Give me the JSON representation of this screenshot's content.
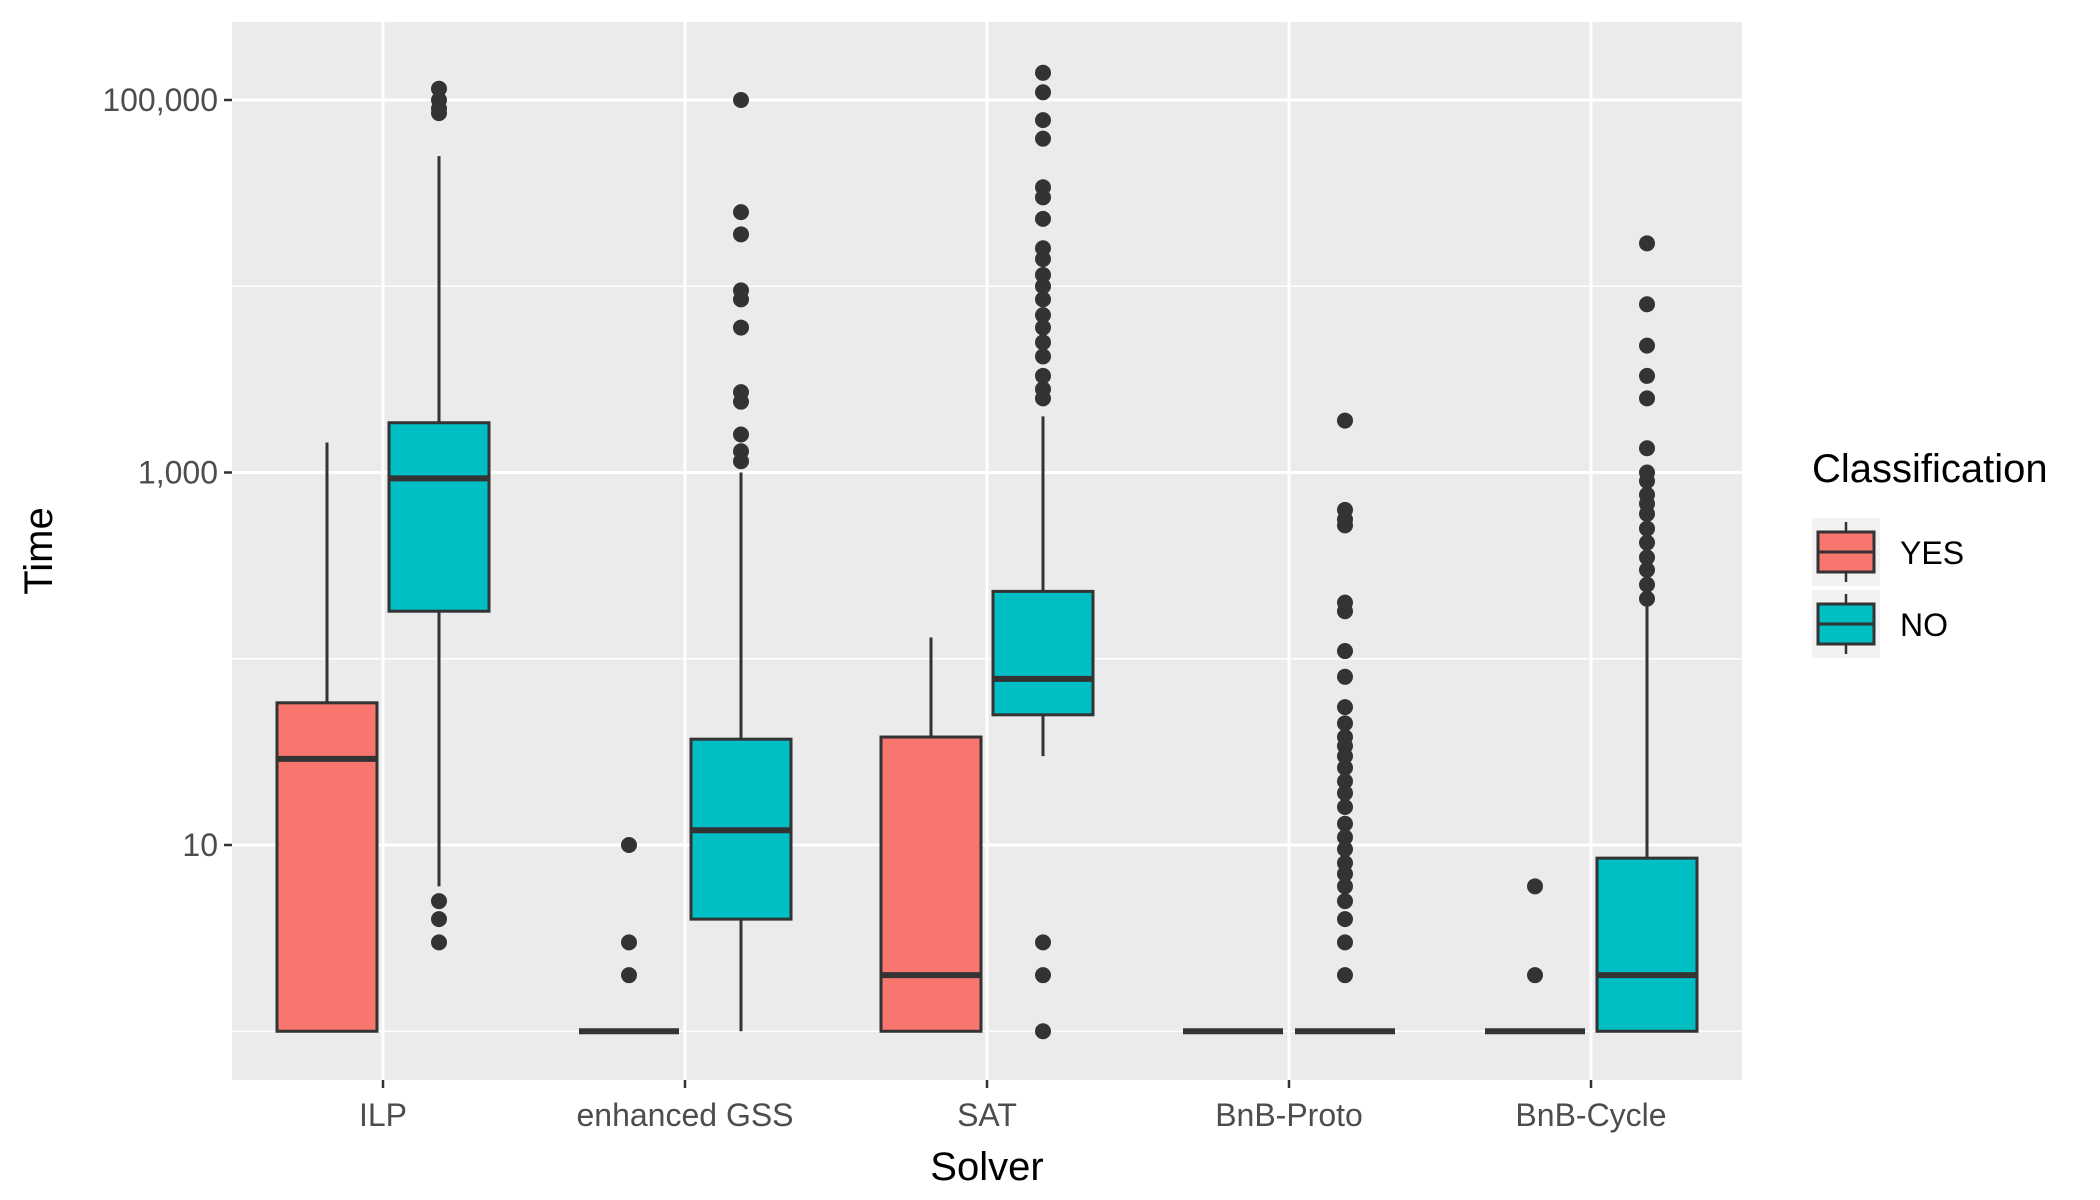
{
  "chart_data": {
    "type": "boxplot",
    "xlabel": "Solver",
    "ylabel": "Time",
    "y_scale": "log10",
    "ylim": [
      1.5,
      400000
    ],
    "y_ticks": [
      10,
      1000,
      100000
    ],
    "y_tick_labels": [
      "10",
      "1,000",
      "100,000"
    ],
    "grid": true,
    "legend_position": "right",
    "legend_title": "Classification",
    "categories": [
      "ILP",
      "enhanced GSS",
      "SAT",
      "BnB-Proto",
      "BnB-Cycle"
    ],
    "colors": {
      "YES": "#F8766D",
      "NO": "#00BFC4",
      "outline": "#333333",
      "panel": "#EBEBEB",
      "grid": "#FFFFFF"
    },
    "series": [
      {
        "name": "YES",
        "boxes": [
          {
            "low": 1,
            "q1": 1,
            "median": 29,
            "q3": 58,
            "high": 1450,
            "outliers": []
          },
          {
            "low": 1,
            "q1": 1,
            "median": 1,
            "q3": 1,
            "high": 1,
            "outliers": [
              10,
              3,
              2
            ]
          },
          {
            "low": 1,
            "q1": 1,
            "median": 2,
            "q3": 38,
            "high": 130,
            "outliers": []
          },
          {
            "low": 1,
            "q1": 1,
            "median": 1,
            "q3": 1,
            "high": 1,
            "outliers": []
          },
          {
            "low": 1,
            "q1": 1,
            "median": 1,
            "q3": 1,
            "high": 1,
            "outliers": [
              6,
              2
            ]
          }
        ]
      },
      {
        "name": "NO",
        "boxes": [
          {
            "low": 6,
            "q1": 180,
            "median": 930,
            "q3": 1850,
            "high": 50000,
            "outliers": [
              115000,
              100000,
              90000,
              85000,
              5,
              4,
              3
            ]
          },
          {
            "low": 1,
            "q1": 4,
            "median": 12,
            "q3": 37,
            "high": 1000,
            "outliers": [
              100000,
              25000,
              19000,
              9500,
              8500,
              6000,
              2700,
              2400,
              1600,
              1300,
              1150
            ]
          },
          {
            "low": 30,
            "q1": 50,
            "median": 78,
            "q3": 230,
            "high": 2000,
            "outliers": [
              140000,
              110000,
              78000,
              62000,
              34000,
              30000,
              23000,
              16000,
              14000,
              11500,
              10000,
              8500,
              7000,
              6000,
              5000,
              4200,
              3300,
              2800,
              2500,
              3,
              2,
              1
            ]
          },
          {
            "low": 1,
            "q1": 1,
            "median": 1,
            "q3": 1,
            "high": 1,
            "outliers": [
              1900,
              630,
              560,
              520,
              200,
              180,
              110,
              80,
              55,
              45,
              38,
              34,
              30,
              26,
              22,
              19,
              16,
              13,
              11,
              9.5,
              8,
              7,
              6,
              5,
              4,
              3,
              2
            ]
          },
          {
            "low": 1,
            "q1": 1,
            "median": 2,
            "q3": 8.5,
            "high": 200,
            "outliers": [
              17000,
              8000,
              4800,
              3300,
              2500,
              1350,
              1000,
              900,
              760,
              680,
              600,
              500,
              420,
              350,
              300,
              250,
              210
            ]
          }
        ]
      }
    ]
  }
}
